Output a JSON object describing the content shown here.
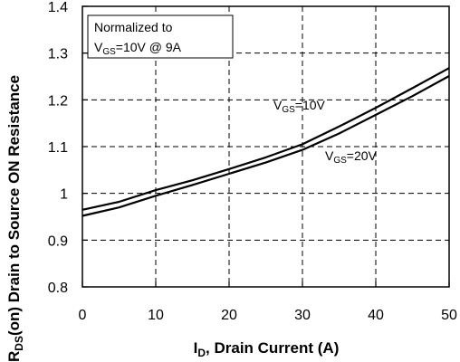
{
  "chart_data": {
    "type": "line",
    "xlabel": {
      "main": "I",
      "sub": "D",
      "rest": ", Drain Current (A)"
    },
    "ylabel": {
      "main": "R",
      "sub": "DS",
      "rest": "(on) Drain to Source ON Resistance"
    },
    "xlim": [
      0,
      50
    ],
    "ylim": [
      0.8,
      1.4
    ],
    "xticks": [
      0,
      10,
      20,
      30,
      40,
      50
    ],
    "yticks": [
      0.8,
      0.9,
      1,
      1.1,
      1.2,
      1.3,
      1.4
    ],
    "xtick_labels": [
      "0",
      "10",
      "20",
      "30",
      "40",
      "50"
    ],
    "ytick_labels": [
      "0.8",
      "0.9",
      "1",
      "1.1",
      "1.2",
      "1.3",
      "1.4"
    ],
    "grid": true,
    "annotation_box": {
      "line1": "Normalized to",
      "line2_main": "V",
      "line2_sub": "GS",
      "line2_rest": "=10V @ 9A"
    },
    "series": [
      {
        "name": "VGS=10V",
        "label_main": "V",
        "label_sub": "GS",
        "label_rest": "=10V",
        "x": [
          0,
          5,
          10,
          15,
          20,
          25,
          30,
          35,
          40,
          45,
          50
        ],
        "values": [
          0.965,
          0.982,
          1.007,
          1.028,
          1.052,
          1.077,
          1.105,
          1.143,
          1.183,
          1.225,
          1.268
        ]
      },
      {
        "name": "VGS=20V",
        "label_main": "V",
        "label_sub": "GS",
        "label_rest": "=20V",
        "x": [
          0,
          5,
          10,
          15,
          20,
          25,
          30,
          35,
          40,
          45,
          50
        ],
        "values": [
          0.952,
          0.97,
          0.995,
          1.018,
          1.042,
          1.066,
          1.093,
          1.128,
          1.168,
          1.208,
          1.251
        ]
      }
    ]
  }
}
